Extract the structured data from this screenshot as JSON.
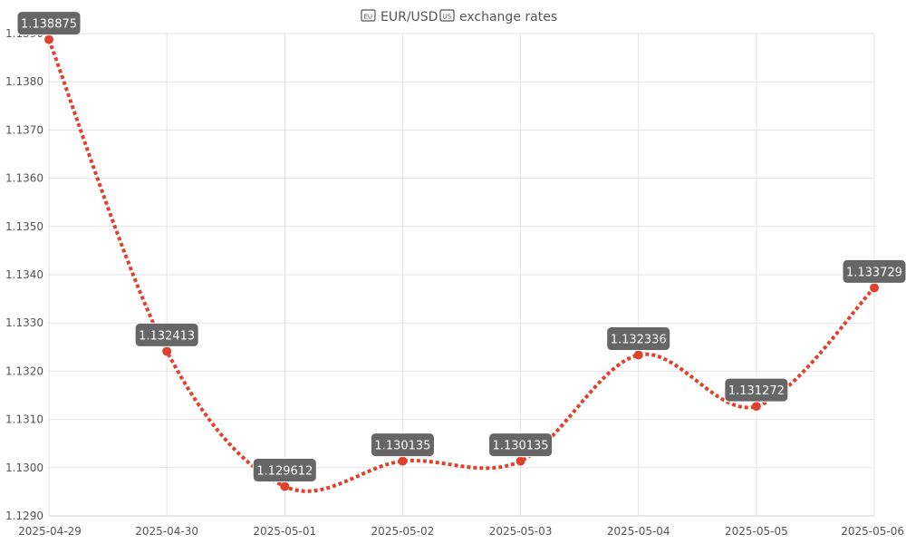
{
  "chart_data": {
    "type": "line",
    "title": "EUR/USD exchange rates",
    "title_parts": {
      "base": "EUR/USD",
      "quote_suffix": "exchange rates"
    },
    "title_icons": [
      "eu-flag-icon",
      "us-flag-icon"
    ],
    "x": [
      "2025-04-29",
      "2025-04-30",
      "2025-05-01",
      "2025-05-02",
      "2025-05-03",
      "2025-05-04",
      "2025-05-05",
      "2025-05-06"
    ],
    "series": [
      {
        "values": [
          1.138875,
          1.132413,
          1.129612,
          1.130135,
          1.130135,
          1.132336,
          1.131272,
          1.133729
        ],
        "data_labels": [
          "1.138875",
          "1.132413",
          "1.129612",
          "1.130135",
          "1.130135",
          "1.132336",
          "1.131272",
          "1.133729"
        ],
        "color": "#e0412c",
        "line_style": "dotted"
      }
    ],
    "y_ticks": [
      "1.1290",
      "1.1300",
      "1.1310",
      "1.1320",
      "1.1330",
      "1.1340",
      "1.1350",
      "1.1360",
      "1.1370",
      "1.1380",
      "1.1390"
    ],
    "y_tick_values": [
      1.129,
      1.13,
      1.131,
      1.132,
      1.133,
      1.134,
      1.135,
      1.136,
      1.137,
      1.138,
      1.139
    ],
    "ylim": [
      1.129,
      1.139
    ],
    "xlabel": "",
    "ylabel": "",
    "grid": true,
    "legend": "none"
  },
  "colors": {
    "line": "#e0412c",
    "label_bg": "#666666",
    "grid": "#e3e3e3"
  }
}
